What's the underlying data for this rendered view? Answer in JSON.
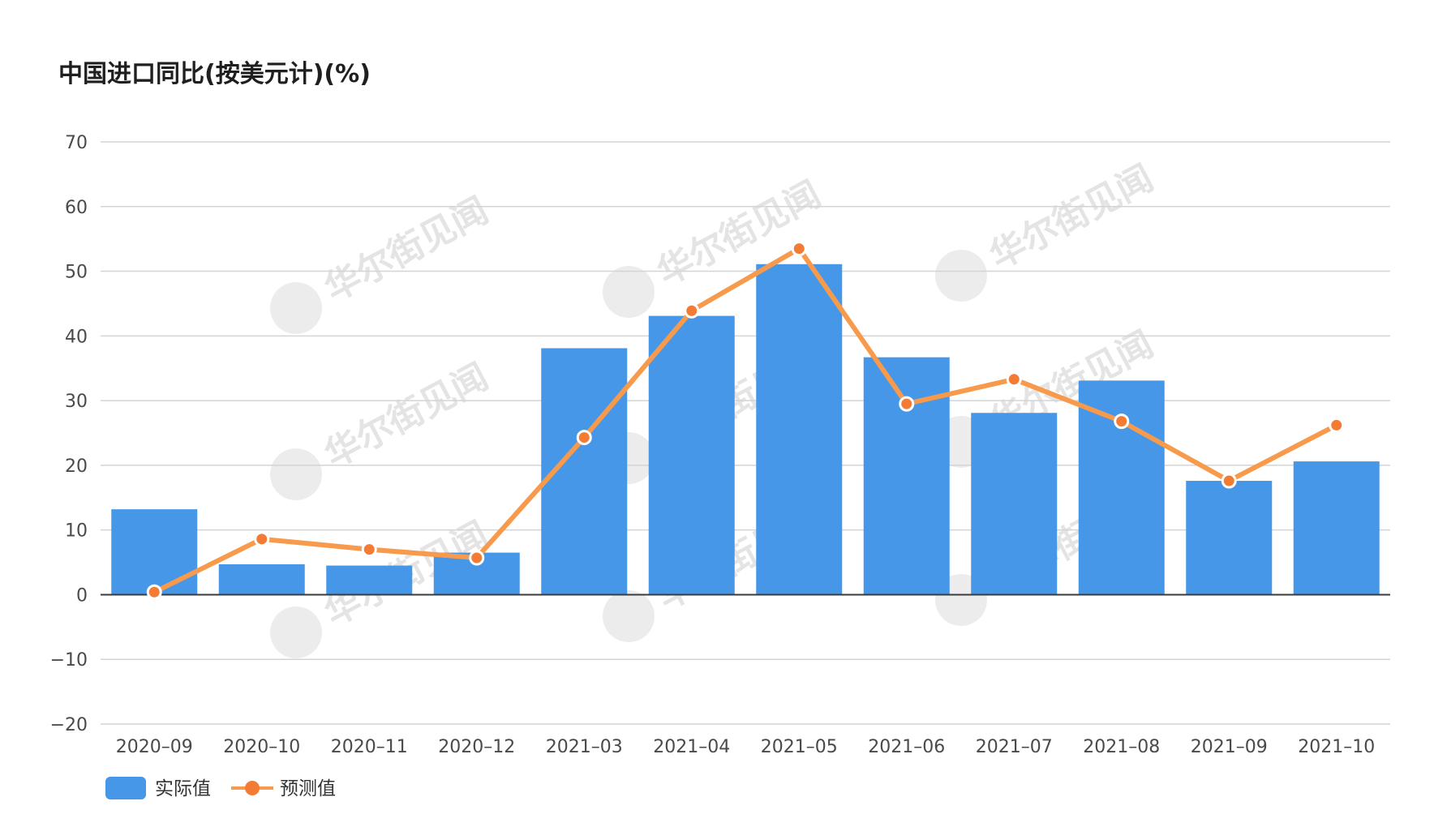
{
  "title": "中国进口同比(按美元计)(%)",
  "watermark_text": "华尔街见闻",
  "colors": {
    "bar": "#4697e8",
    "line": "#f79a4b",
    "point": "#f47b34",
    "grid": "#d4d4d4",
    "axis": "#3b3b3b"
  },
  "legend": {
    "actual_label": "实际值",
    "forecast_label": "预测值"
  },
  "chart_data": {
    "type": "bar",
    "title": "中国进口同比(按美元计)(%)",
    "xlabel": "",
    "ylabel": "",
    "categories": [
      "2020-09",
      "2020-10",
      "2020-11",
      "2020-12",
      "2021-03",
      "2021-04",
      "2021-05",
      "2021-06",
      "2021-07",
      "2021-08",
      "2021-09",
      "2021-10"
    ],
    "category_labels": [
      "2020–09",
      "2020–10",
      "2020–11",
      "2020–12",
      "2021–03",
      "2021–04",
      "2021–05",
      "2021–06",
      "2021–07",
      "2021–08",
      "2021–09",
      "2021–10"
    ],
    "y_tick_labels": [
      "−20",
      "−10",
      "0",
      "10",
      "20",
      "30",
      "40",
      "50",
      "60",
      "70"
    ],
    "ylim": [
      -20,
      70
    ],
    "yticks": [
      -20,
      -10,
      0,
      10,
      20,
      30,
      40,
      50,
      60,
      70
    ],
    "grid": true,
    "legend_position": "bottom-left",
    "series": [
      {
        "name": "实际值",
        "type": "bar",
        "values": [
          13.2,
          4.7,
          4.5,
          6.5,
          38.1,
          43.1,
          51.1,
          36.7,
          28.1,
          33.1,
          17.6,
          20.6
        ]
      },
      {
        "name": "预测值",
        "type": "line",
        "values": [
          0.4,
          8.6,
          7.0,
          5.7,
          24.3,
          43.9,
          53.5,
          29.5,
          33.3,
          26.8,
          17.6,
          26.2
        ]
      }
    ]
  }
}
